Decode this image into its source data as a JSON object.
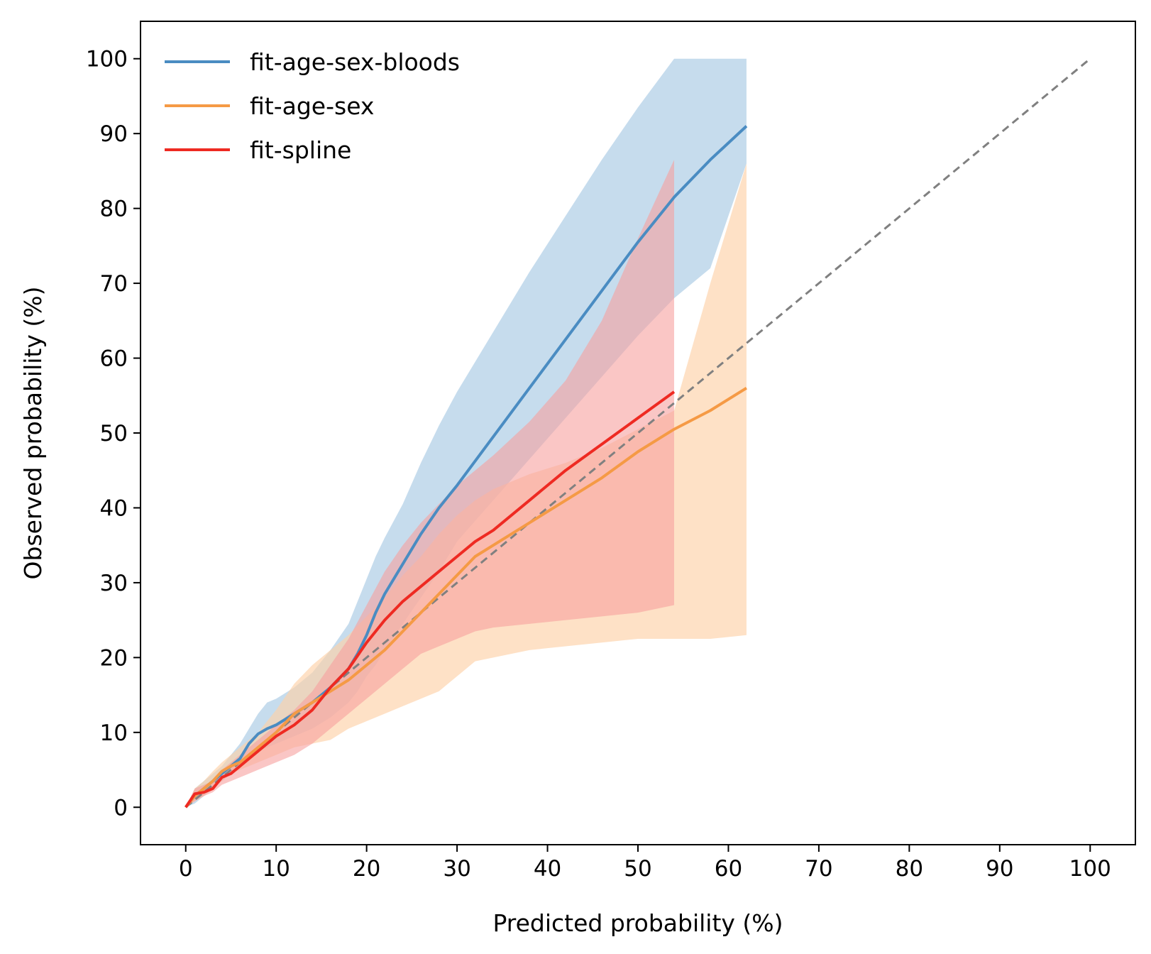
{
  "chart_data": {
    "type": "line",
    "xlabel": "Predicted probability (%)",
    "ylabel": "Observed probability (%)",
    "xlim": [
      -5,
      105
    ],
    "ylim": [
      -5,
      105
    ],
    "xticks": [
      0,
      10,
      20,
      30,
      40,
      50,
      60,
      70,
      80,
      90,
      100
    ],
    "yticks": [
      0,
      10,
      20,
      30,
      40,
      50,
      60,
      70,
      80,
      90,
      100
    ],
    "grid": false,
    "legend_position": "top-left",
    "reference_line": {
      "style": "dashed",
      "color": "#808080",
      "x": [
        0,
        100
      ],
      "y": [
        0,
        100
      ]
    },
    "series": [
      {
        "name": "fit-age-sex-bloods",
        "color": "#4a8cc2",
        "band_color": "#a8c9e3",
        "x": [
          0,
          1,
          2,
          3,
          4,
          5,
          6,
          7,
          8,
          9,
          10,
          12,
          14,
          16,
          18,
          19,
          20,
          21,
          22,
          24,
          26,
          28,
          30,
          34,
          38,
          42,
          46,
          50,
          54,
          58,
          62
        ],
        "y": [
          0,
          1.5,
          2.5,
          3.5,
          4.5,
          5.5,
          6.5,
          8.5,
          9.8,
          10.5,
          11,
          12.5,
          14,
          16,
          18.5,
          20.5,
          23,
          26,
          28.5,
          32.5,
          36.5,
          40,
          43,
          49.5,
          56,
          62.5,
          69,
          75.5,
          81.5,
          86.5,
          91
        ],
        "lower": [
          0,
          0.5,
          1.5,
          2.5,
          3.5,
          4.5,
          5.5,
          6.5,
          7.5,
          8,
          8.5,
          9.5,
          10.5,
          12,
          14,
          15.5,
          17.5,
          19,
          21,
          24.5,
          28,
          31.5,
          35.5,
          41,
          46.5,
          52,
          57.5,
          63,
          68,
          72,
          86
        ],
        "upper": [
          0,
          2.5,
          3.5,
          4.5,
          5.5,
          7,
          8.5,
          10.5,
          12.5,
          14,
          14.5,
          16,
          18,
          21,
          24.5,
          27.5,
          30.5,
          33.5,
          36,
          40.5,
          46,
          51,
          55.5,
          63.5,
          71.5,
          79,
          86.5,
          93.5,
          100,
          100,
          100
        ]
      },
      {
        "name": "fit-age-sex",
        "color": "#f59a45",
        "band_color": "#fdd1a8",
        "x": [
          0,
          1,
          2,
          3,
          4,
          5,
          6,
          7,
          8,
          9,
          10,
          12,
          14,
          16,
          18,
          20,
          22,
          24,
          26,
          28,
          30,
          32,
          34,
          38,
          42,
          46,
          50,
          54,
          58,
          62
        ],
        "y": [
          0,
          1.5,
          2.5,
          3.5,
          4.8,
          5.5,
          6,
          7,
          8,
          9,
          10,
          12.5,
          14,
          15.5,
          17,
          19,
          21,
          23.5,
          26,
          28.5,
          31,
          33.5,
          35,
          38,
          41,
          44,
          47.5,
          50.5,
          53,
          56
        ],
        "lower": [
          0,
          0.8,
          1.5,
          2.5,
          3.5,
          4.5,
          5,
          5.5,
          6,
          6.5,
          7,
          8,
          8.5,
          9,
          10.5,
          11.5,
          12.5,
          13.5,
          14.5,
          15.5,
          17.5,
          19.5,
          20,
          21,
          21.5,
          22,
          22.5,
          22.5,
          22.5,
          23
        ],
        "upper": [
          0,
          2.5,
          3.5,
          4.8,
          6,
          7,
          8,
          9,
          10,
          11.5,
          13,
          16.5,
          19,
          21,
          23,
          25.5,
          28,
          31,
          33.5,
          36.5,
          39,
          41,
          42.5,
          44.5,
          46,
          48,
          50.5,
          53,
          70,
          86
        ]
      },
      {
        "name": "fit-spline",
        "color": "#ee2a22",
        "band_color": "#f7a09e",
        "x": [
          0,
          1,
          2,
          3,
          4,
          5,
          6,
          7,
          8,
          9,
          10,
          12,
          14,
          16,
          18,
          20,
          22,
          24,
          26,
          28,
          30,
          32,
          34,
          38,
          42,
          46,
          50,
          54
        ],
        "y": [
          0,
          1.8,
          2,
          2.5,
          4,
          4.5,
          5.5,
          6.5,
          7.5,
          8.5,
          9.5,
          11,
          13,
          16,
          18.5,
          22,
          25,
          27.5,
          29.5,
          31.5,
          33.5,
          35.5,
          37,
          41,
          45,
          48.5,
          52,
          55.5
        ],
        "lower": [
          0,
          0.8,
          1.5,
          2,
          3,
          3.5,
          4,
          4.5,
          5,
          5.5,
          6,
          7,
          8.5,
          10.5,
          12.5,
          14.5,
          16.5,
          18.5,
          20.5,
          21.5,
          22.5,
          23.5,
          24,
          24.5,
          25,
          25.5,
          26,
          27
        ],
        "upper": [
          0,
          2.5,
          3,
          3.5,
          5,
          6,
          7,
          8,
          9,
          10,
          11,
          13,
          15.5,
          19,
          22.5,
          27,
          31.5,
          35,
          38,
          40.5,
          43,
          45,
          47,
          51.5,
          57,
          65,
          76,
          86.5
        ]
      }
    ]
  }
}
